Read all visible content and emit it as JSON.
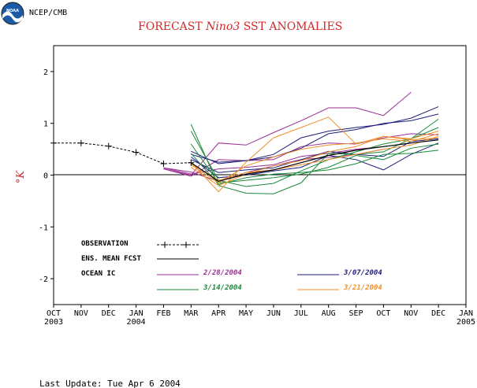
{
  "header": {
    "agency": "NCEP/CMB",
    "update": "Last Update: Tue Apr 6 2004"
  },
  "logo": {
    "text": "NOAA"
  },
  "chart_data": {
    "type": "line",
    "title_parts": [
      "FORECAST ",
      "Nino3",
      "  SST ANOMALIES"
    ],
    "ylabel": "°K",
    "ylim": [
      -2.5,
      2.5
    ],
    "yticks": [
      -2,
      -1,
      0,
      1,
      2
    ],
    "ytick_labels": [
      "-2",
      "-1",
      "0",
      "1",
      "2"
    ],
    "x_months": [
      "OCT\n2003",
      "NOV",
      "DEC",
      "JAN\n2004",
      "FEB",
      "MAR",
      "APR",
      "MAY",
      "JUN",
      "JUL",
      "AUG",
      "SEP",
      "OCT",
      "NOV",
      "DEC",
      "JAN\n2005"
    ],
    "grid": false,
    "zero_line": true,
    "observation": {
      "x": [
        0,
        1,
        2,
        3,
        4,
        5
      ],
      "y": [
        0.62,
        0.62,
        0.56,
        0.44,
        0.22,
        0.24
      ]
    },
    "ens_mean": {
      "x": [
        5,
        6,
        7,
        8,
        9,
        10,
        11,
        12,
        13,
        14
      ],
      "y": [
        0.24,
        -0.12,
        0.02,
        0.1,
        0.24,
        0.38,
        0.48,
        0.55,
        0.62,
        0.68
      ]
    },
    "colors": {
      "feb28": "#9b2f93",
      "mar07": "#1e1e7c",
      "mar14": "#1a8a38",
      "mar21": "#f0902a",
      "observation": "#000000",
      "ens": "#000000",
      "title": "#d0282a"
    },
    "series": [
      {
        "group": "feb28",
        "x": [
          4,
          5,
          6,
          7,
          8,
          9,
          10,
          11,
          12,
          13
        ],
        "y": [
          0.12,
          0.0,
          0.62,
          0.58,
          0.82,
          1.05,
          1.3,
          1.3,
          1.15,
          1.6
        ]
      },
      {
        "group": "feb28",
        "x": [
          4,
          5,
          6,
          7,
          8,
          9,
          10,
          11,
          12,
          13,
          14
        ],
        "y": [
          0.12,
          -0.02,
          0.3,
          0.28,
          0.3,
          0.55,
          0.62,
          0.6,
          0.72,
          0.8,
          0.78
        ]
      },
      {
        "group": "feb28",
        "x": [
          4,
          5,
          6,
          7,
          8,
          9,
          10,
          11,
          12,
          13
        ],
        "y": [
          0.14,
          0.02,
          0.12,
          0.15,
          0.2,
          0.36,
          0.42,
          0.5,
          0.55,
          0.62
        ]
      },
      {
        "group": "feb28",
        "x": [
          4,
          5,
          6,
          7,
          8,
          9,
          10,
          11,
          12
        ],
        "y": [
          0.14,
          0.06,
          -0.12,
          0.05,
          0.18,
          0.3,
          0.34,
          0.4,
          0.5
        ]
      },
      {
        "group": "mar07",
        "x": [
          5,
          6,
          7,
          8,
          9,
          10,
          11,
          12,
          13,
          14
        ],
        "y": [
          0.46,
          0.22,
          0.28,
          0.4,
          0.72,
          0.85,
          0.92,
          0.98,
          1.1,
          1.32
        ]
      },
      {
        "group": "mar07",
        "x": [
          5,
          6,
          7,
          8,
          9,
          10,
          11,
          12,
          13,
          14
        ],
        "y": [
          0.4,
          0.25,
          0.28,
          0.35,
          0.52,
          0.8,
          0.88,
          1.0,
          1.05,
          1.18
        ]
      },
      {
        "group": "mar07",
        "x": [
          5,
          6,
          7,
          8,
          9,
          10,
          11,
          12,
          13,
          14
        ],
        "y": [
          0.3,
          0.05,
          0.1,
          0.14,
          0.3,
          0.46,
          0.4,
          0.36,
          0.65,
          0.7
        ]
      },
      {
        "group": "mar07",
        "x": [
          5,
          6,
          7,
          8,
          9,
          10,
          11,
          12,
          13,
          14
        ],
        "y": [
          0.35,
          -0.05,
          0.0,
          0.08,
          0.15,
          0.38,
          0.3,
          0.1,
          0.4,
          0.62
        ]
      },
      {
        "group": "mar14",
        "x": [
          5,
          6,
          7,
          8,
          9,
          10,
          11,
          12,
          13,
          14
        ],
        "y": [
          0.98,
          -0.2,
          -0.35,
          -0.36,
          -0.15,
          0.42,
          0.4,
          0.45,
          0.7,
          0.92
        ]
      },
      {
        "group": "mar14",
        "x": [
          5,
          6,
          7,
          8,
          9,
          10,
          11,
          12,
          13,
          14
        ],
        "y": [
          0.85,
          -0.1,
          -0.22,
          -0.16,
          0.08,
          0.3,
          0.45,
          0.6,
          0.7,
          1.08
        ]
      },
      {
        "group": "mar14",
        "x": [
          5,
          6,
          7,
          8,
          9,
          10,
          11,
          12,
          13,
          14
        ],
        "y": [
          0.6,
          -0.15,
          -0.1,
          -0.05,
          0.02,
          0.15,
          0.38,
          0.3,
          0.52,
          0.6
        ]
      },
      {
        "group": "mar14",
        "x": [
          5,
          6,
          7,
          8,
          9,
          10,
          11,
          12,
          13,
          14
        ],
        "y": [
          0.42,
          -0.18,
          -0.05,
          0.02,
          0.05,
          0.1,
          0.22,
          0.4,
          0.42,
          0.48
        ]
      },
      {
        "group": "mar21",
        "x": [
          5,
          6,
          7,
          8,
          9,
          10,
          11,
          12,
          13,
          14
        ],
        "y": [
          0.25,
          -0.32,
          0.25,
          0.72,
          0.92,
          1.12,
          0.6,
          0.75,
          0.7,
          0.85
        ]
      },
      {
        "group": "mar21",
        "x": [
          5,
          6,
          7,
          8,
          9,
          10,
          11,
          12,
          13,
          14
        ],
        "y": [
          0.2,
          -0.15,
          0.18,
          0.35,
          0.5,
          0.58,
          0.62,
          0.7,
          0.65,
          0.8
        ]
      },
      {
        "group": "mar21",
        "x": [
          5,
          6,
          7,
          8,
          9,
          10,
          11,
          12,
          13,
          14
        ],
        "y": [
          0.15,
          -0.2,
          0.02,
          0.18,
          0.28,
          0.45,
          0.55,
          0.75,
          0.68,
          0.72
        ]
      },
      {
        "group": "mar21",
        "x": [
          5,
          6,
          7,
          8,
          9,
          10,
          11,
          12,
          13,
          14
        ],
        "y": [
          0.22,
          -0.1,
          0.05,
          0.1,
          0.2,
          0.3,
          0.4,
          0.5,
          0.58,
          0.75
        ]
      }
    ],
    "legend": {
      "observation": "OBSERVATION",
      "ens": "ENS. MEAN FCST",
      "ocean": "OCEAN IC",
      "feb28": "2/28/2004",
      "mar07": "3/07/2004",
      "mar14": "3/14/2004",
      "mar21": "3/21/2004"
    }
  }
}
